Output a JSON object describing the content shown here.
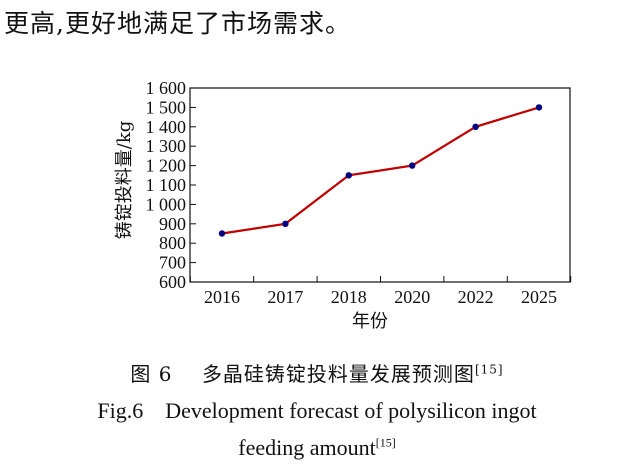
{
  "body_text_top": "更高,更好地满足了市场需求。",
  "caption": {
    "cn_fig": "图 6",
    "cn_title": "多晶硅铸锭投料量发展预测图",
    "cn_ref": "[15]",
    "en_line1": "Fig.6    Development forecast of polysilicon ingot",
    "en_line2": "feeding amount",
    "en_ref": "[15]"
  },
  "chart_data": {
    "type": "line",
    "categories": [
      "2016",
      "2017",
      "2018",
      "2020",
      "2022",
      "2025"
    ],
    "series": [
      {
        "values": [
          850,
          900,
          1150,
          1200,
          1400,
          1500
        ],
        "color": "#c00000",
        "marker_color": "#000080"
      }
    ],
    "xlabel": "年份",
    "ylabel": "铸锭投料量/kg",
    "ylim": [
      600,
      1600
    ],
    "yticks": [
      600,
      700,
      800,
      900,
      1000,
      1100,
      1200,
      1300,
      1400,
      1500,
      1600
    ],
    "ytick_labels": [
      "600",
      "700",
      "800",
      "900",
      "1 000",
      "1 100",
      "1 200",
      "1 300",
      "1 400",
      "1 500",
      "1 600"
    ],
    "grid": false
  }
}
